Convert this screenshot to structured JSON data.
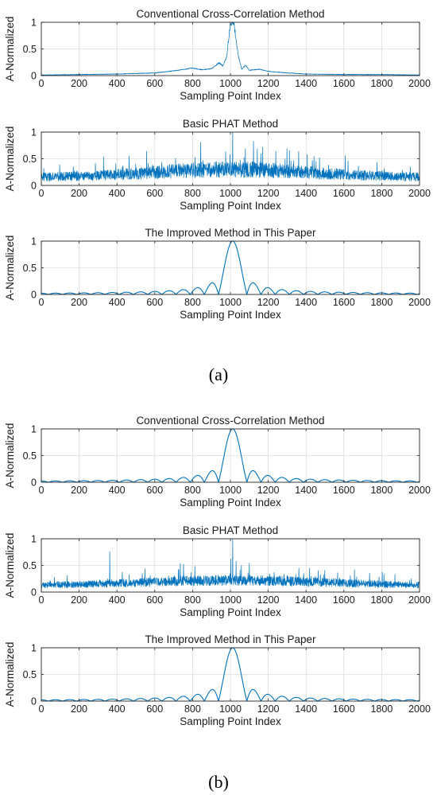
{
  "figure": {
    "panel_labels": [
      "(a)",
      "(b)"
    ]
  },
  "chart_data": [
    {
      "type": "line",
      "panel": "(a)",
      "title": "Conventional Cross-Correlation Method",
      "xlabel": "Sampling Point Index",
      "ylabel": "A-Normalized",
      "xlim": [
        0,
        2000
      ],
      "ylim": [
        0,
        1
      ],
      "xticks": [
        0,
        200,
        400,
        600,
        800,
        1000,
        1200,
        1400,
        1600,
        1800,
        2000
      ],
      "yticks": [
        0,
        0.5,
        1
      ],
      "grid": true,
      "color": "#0072BD",
      "model": "mainlobe",
      "keypoints": {
        "x": [
          0,
          200,
          400,
          600,
          700,
          800,
          850,
          900,
          940,
          960,
          980,
          1000,
          1010,
          1020,
          1040,
          1060,
          1080,
          1100,
          1150,
          1200,
          1300,
          1400,
          1600,
          1800,
          2000
        ],
        "y": [
          0.01,
          0.02,
          0.03,
          0.05,
          0.09,
          0.14,
          0.11,
          0.13,
          0.24,
          0.18,
          0.35,
          0.98,
          1.0,
          0.95,
          0.4,
          0.12,
          0.2,
          0.1,
          0.12,
          0.08,
          0.05,
          0.03,
          0.02,
          0.02,
          0.01
        ]
      }
    },
    {
      "type": "line",
      "panel": "(a)",
      "title": "Basic PHAT Method",
      "xlabel": "Sampling Point Index",
      "ylabel": "A-Normalized",
      "xlim": [
        0,
        2000
      ],
      "ylim": [
        0,
        1
      ],
      "xticks": [
        0,
        200,
        400,
        600,
        800,
        1000,
        1200,
        1400,
        1600,
        1800,
        2000
      ],
      "yticks": [
        0,
        0.5,
        1
      ],
      "grid": true,
      "color": "#0072BD",
      "model": "noise",
      "noise": {
        "edge_level": 0.15,
        "center_level": 0.3,
        "center_width": 600,
        "spread": 0.5,
        "peak_index": 1012,
        "peak_value": 1.0
      }
    },
    {
      "type": "line",
      "panel": "(a)",
      "title": "The Improved Method in This Paper",
      "xlabel": "Sampling Point Index",
      "ylabel": "A-Normalized",
      "xlim": [
        0,
        2000
      ],
      "ylim": [
        0,
        1
      ],
      "xticks": [
        0,
        200,
        400,
        600,
        800,
        1000,
        1200,
        1400,
        1600,
        1800,
        2000
      ],
      "yticks": [
        0,
        0.5,
        1
      ],
      "grid": true,
      "color": "#0072BD",
      "model": "sinc",
      "sinc": {
        "center": 1012,
        "main_width": 75,
        "sidelobe_scale": 1.0
      }
    },
    {
      "type": "line",
      "panel": "(b)",
      "title": "Conventional Cross-Correlation Method",
      "xlabel": "Sampling Point Index",
      "ylabel": "A-Normalized",
      "xlim": [
        0,
        2000
      ],
      "ylim": [
        0,
        1
      ],
      "xticks": [
        0,
        200,
        400,
        600,
        800,
        1000,
        1200,
        1400,
        1600,
        1800,
        2000
      ],
      "yticks": [
        0,
        0.5,
        1
      ],
      "grid": true,
      "color": "#0072BD",
      "model": "sinc",
      "sinc": {
        "center": 1012,
        "main_width": 75,
        "sidelobe_scale": 1.0
      }
    },
    {
      "type": "line",
      "panel": "(b)",
      "title": "Basic PHAT Method",
      "xlabel": "Sampling Point Index",
      "ylabel": "A-Normalized",
      "xlim": [
        0,
        2000
      ],
      "ylim": [
        0,
        1
      ],
      "xticks": [
        0,
        200,
        400,
        600,
        800,
        1000,
        1200,
        1400,
        1600,
        1800,
        2000
      ],
      "yticks": [
        0,
        0.5,
        1
      ],
      "grid": true,
      "color": "#0072BD",
      "model": "noise",
      "noise": {
        "edge_level": 0.12,
        "center_level": 0.22,
        "center_width": 700,
        "spread": 0.45,
        "peak_index": 1012,
        "peak_value": 1.0,
        "extra_spikes": [
          [
            362,
            0.76
          ],
          [
            1002,
            0.62
          ],
          [
            1030,
            0.58
          ]
        ]
      }
    },
    {
      "type": "line",
      "panel": "(b)",
      "title": "The Improved Method in This Paper",
      "xlabel": "Sampling Point Index",
      "ylabel": "A-Normalized",
      "xlim": [
        0,
        2000
      ],
      "ylim": [
        0,
        1
      ],
      "xticks": [
        0,
        200,
        400,
        600,
        800,
        1000,
        1200,
        1400,
        1600,
        1800,
        2000
      ],
      "yticks": [
        0,
        0.5,
        1
      ],
      "grid": true,
      "color": "#0072BD",
      "model": "sinc",
      "sinc": {
        "center": 1012,
        "main_width": 75,
        "sidelobe_scale": 1.0
      }
    }
  ]
}
